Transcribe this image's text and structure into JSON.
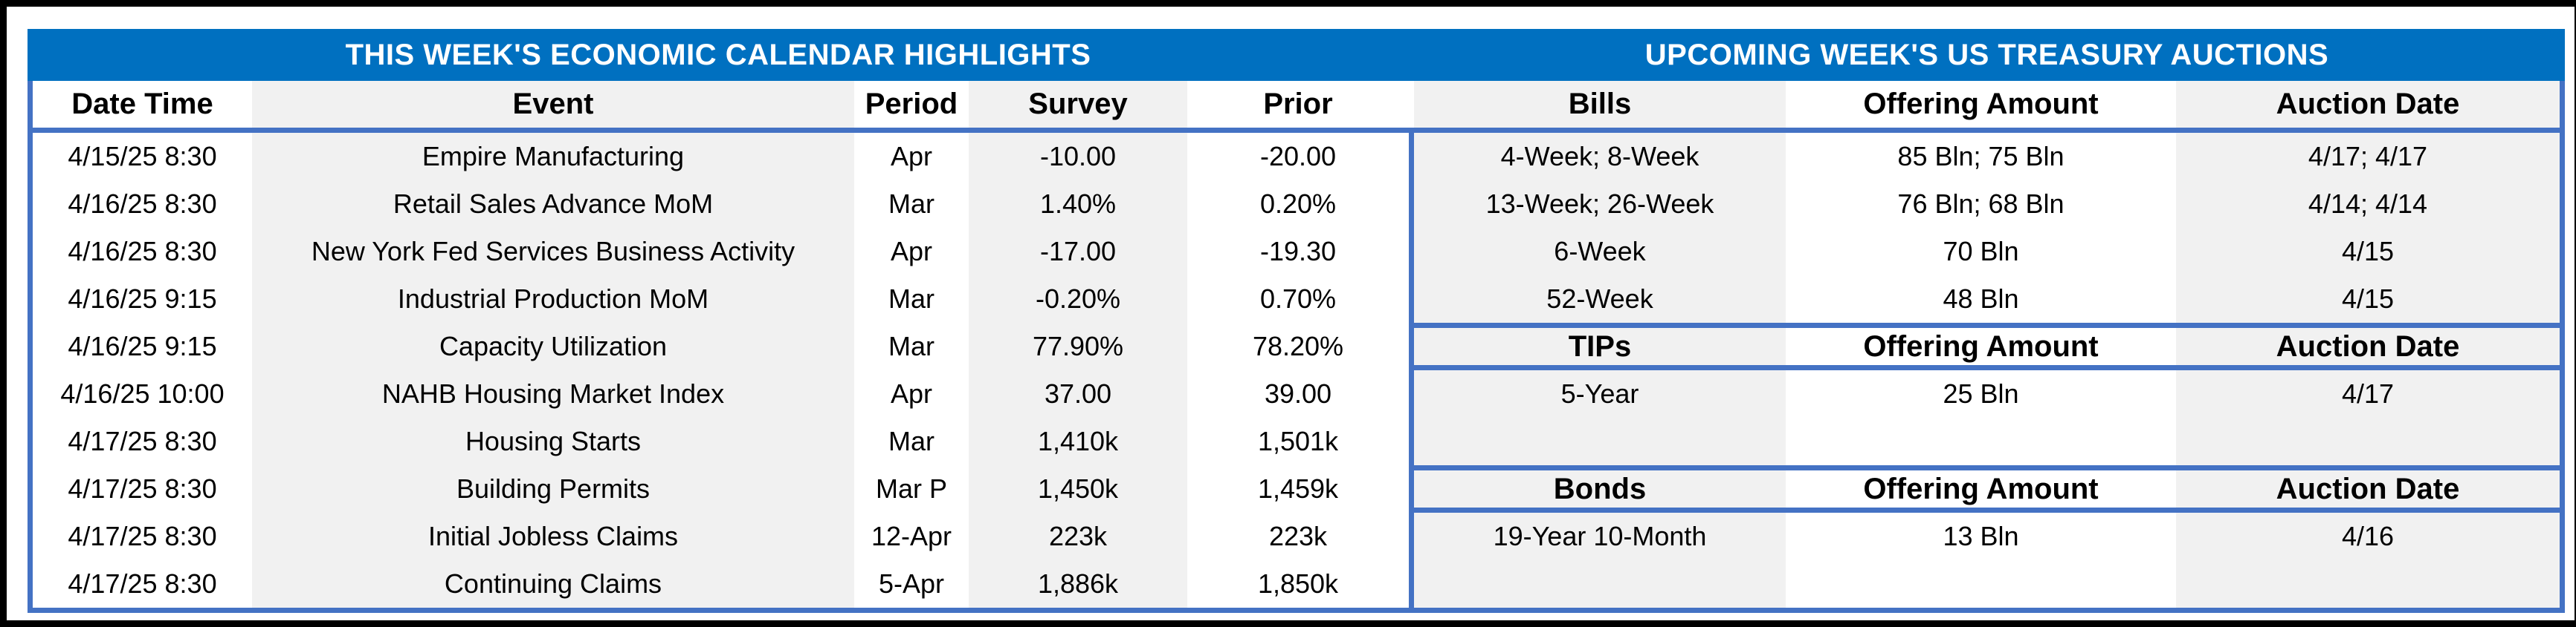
{
  "titles": {
    "calendar": "THIS WEEK'S ECONOMIC CALENDAR HIGHLIGHTS",
    "auctions": "UPCOMING WEEK'S US TREASURY AUCTIONS"
  },
  "calendar": {
    "headers": {
      "date": "Date Time",
      "event": "Event",
      "period": "Period",
      "survey": "Survey",
      "prior": "Prior"
    },
    "rows": [
      {
        "date": "4/15/25 8:30",
        "event": "Empire Manufacturing",
        "period": "Apr",
        "survey": "-10.00",
        "prior": "-20.00"
      },
      {
        "date": "4/16/25 8:30",
        "event": "Retail Sales Advance MoM",
        "period": "Mar",
        "survey": "1.40%",
        "prior": "0.20%"
      },
      {
        "date": "4/16/25 8:30",
        "event": "New York Fed Services Business Activity",
        "period": "Apr",
        "survey": "-17.00",
        "prior": "-19.30"
      },
      {
        "date": "4/16/25 9:15",
        "event": "Industrial Production MoM",
        "period": "Mar",
        "survey": "-0.20%",
        "prior": "0.70%"
      },
      {
        "date": "4/16/25 9:15",
        "event": "Capacity Utilization",
        "period": "Mar",
        "survey": "77.90%",
        "prior": "78.20%"
      },
      {
        "date": "4/16/25 10:00",
        "event": "NAHB Housing Market Index",
        "period": "Apr",
        "survey": "37.00",
        "prior": "39.00"
      },
      {
        "date": "4/17/25 8:30",
        "event": "Housing Starts",
        "period": "Mar",
        "survey": "1,410k",
        "prior": "1,501k"
      },
      {
        "date": "4/17/25 8:30",
        "event": "Building Permits",
        "period": "Mar P",
        "survey": "1,450k",
        "prior": "1,459k"
      },
      {
        "date": "4/17/25 8:30",
        "event": "Initial Jobless Claims",
        "period": "12-Apr",
        "survey": "223k",
        "prior": "223k"
      },
      {
        "date": "4/17/25 8:30",
        "event": "Continuing Claims",
        "period": "5-Apr",
        "survey": "1,886k",
        "prior": "1,850k"
      }
    ]
  },
  "auctions": {
    "bills": {
      "headers": {
        "type": "Bills",
        "amount": "Offering Amount",
        "date": "Auction Date"
      },
      "rows": [
        {
          "type": "4-Week; 8-Week",
          "amount": "85 Bln; 75 Bln",
          "date": "4/17; 4/17"
        },
        {
          "type": "13-Week; 26-Week",
          "amount": "76 Bln; 68 Bln",
          "date": "4/14; 4/14"
        },
        {
          "type": "6-Week",
          "amount": "70 Bln",
          "date": "4/15"
        },
        {
          "type": "52-Week",
          "amount": "48 Bln",
          "date": "4/15"
        }
      ]
    },
    "tips": {
      "headers": {
        "type": "TIPs",
        "amount": "Offering Amount",
        "date": "Auction Date"
      },
      "rows": [
        {
          "type": "5-Year",
          "amount": "25 Bln",
          "date": "4/17"
        }
      ]
    },
    "bonds": {
      "headers": {
        "type": "Bonds",
        "amount": "Offering Amount",
        "date": "Auction Date"
      },
      "rows": [
        {
          "type": "19-Year 10-Month",
          "amount": "13 Bln",
          "date": "4/16"
        }
      ]
    }
  },
  "colors": {
    "band": "#0070C0",
    "grid": "#4472C4",
    "stripe": "#F1F1F1",
    "frame": "#000000"
  }
}
